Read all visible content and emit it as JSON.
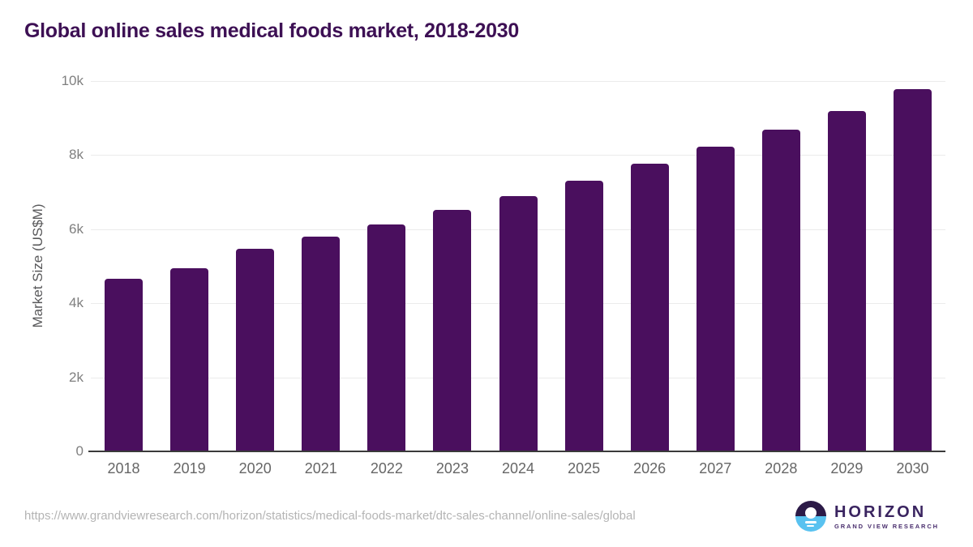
{
  "title": "Global online sales medical foods market, 2018-2030",
  "chart_data": {
    "type": "bar",
    "title": "Global online sales medical foods market, 2018-2030",
    "categories": [
      "2018",
      "2019",
      "2020",
      "2021",
      "2022",
      "2023",
      "2024",
      "2025",
      "2026",
      "2027",
      "2028",
      "2029",
      "2030"
    ],
    "values": [
      4660,
      4950,
      5470,
      5790,
      6130,
      6520,
      6900,
      7310,
      7770,
      8230,
      8690,
      9190,
      9780
    ],
    "xlabel": "",
    "ylabel": "Market Size (US$M)",
    "ylim": [
      0,
      10000
    ],
    "yticks": [
      {
        "label": "10k",
        "value": 10000
      },
      {
        "label": "8k",
        "value": 8000
      },
      {
        "label": "6k",
        "value": 6000
      },
      {
        "label": "4k",
        "value": 4000
      },
      {
        "label": "2k",
        "value": 2000
      },
      {
        "label": "0",
        "value": 0
      }
    ],
    "grid": "horizontal",
    "legend": "none",
    "bar_color": "#4a0f5e"
  },
  "colors": {
    "title": "#3d1054",
    "bar": "#4a0f5e",
    "gridline": "#ebebeb",
    "axis_line": "#3a3a3a",
    "tick_label": "#7f7f7f",
    "x_label": "#666666",
    "url_text": "#b4b4b4",
    "logo_navy": "#2c1a47",
    "logo_blue": "#59c2f0"
  },
  "footer": {
    "source_url": "https://www.grandviewresearch.com/horizon/statistics/medical-foods-market/dtc-sales-channel/online-sales/global",
    "logo": {
      "name": "HORIZON",
      "subtitle": "GRAND VIEW RESEARCH"
    }
  }
}
